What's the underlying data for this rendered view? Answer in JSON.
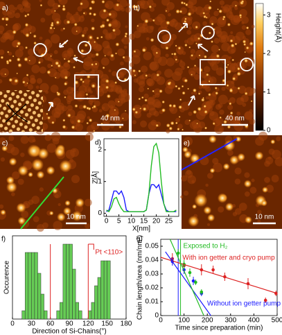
{
  "images": [
    {
      "label": "a)",
      "scale_bar": "40 nm"
    },
    {
      "label": "b)",
      "scale_bar": "40 nm"
    },
    {
      "label": "c)",
      "scale_bar": "10 nm"
    },
    {
      "label": "e)",
      "scale_bar": "10 nm"
    }
  ],
  "colorbar": {
    "label": "Height(Å)",
    "lim": [
      0,
      3.3
    ],
    "ticks": [
      0,
      1,
      2,
      3
    ]
  },
  "chart_data": [
    {
      "type": "line",
      "panel": "d)",
      "xlabel": "X[nm]",
      "ylabel": "Z[Å]",
      "x": [
        0,
        1,
        2,
        3,
        4,
        5,
        6,
        7,
        8,
        9,
        10,
        11,
        12,
        13,
        14,
        15,
        16,
        17,
        18,
        19,
        20,
        21,
        22,
        23,
        24,
        25,
        26,
        27,
        28
      ],
      "series": [
        {
          "color": "#1a1aff",
          "values": [
            0.05,
            0.1,
            0.4,
            0.7,
            0.7,
            0.6,
            0.7,
            0.5,
            0.1,
            0.05,
            0.05,
            0.05,
            0.05,
            0.05,
            0.05,
            0.05,
            0.1,
            0.6,
            0.9,
            0.9,
            0.8,
            0.9,
            0.6,
            0.3,
            0.1,
            0.05,
            0.05,
            0.05,
            0.05
          ]
        },
        {
          "color": "#22bb22",
          "values": [
            0.1,
            0.05,
            0.2,
            0.45,
            0.5,
            0.3,
            0.15,
            0.05,
            0.05,
            0.05,
            0.05,
            0.05,
            0.05,
            0.05,
            0.05,
            0.05,
            0.1,
            0.6,
            1.5,
            2.1,
            2.2,
            1.9,
            1.0,
            0.3,
            0.05,
            0.05,
            0.05,
            0.05,
            0.1
          ]
        }
      ],
      "xlim": [
        -1,
        29
      ],
      "xticks": [
        0,
        5,
        10,
        15,
        20,
        25
      ],
      "ylim": [
        -0.1,
        2.35
      ],
      "yticks": [
        0,
        1,
        2
      ]
    },
    {
      "type": "histogram",
      "panel": "f)",
      "xlabel": "Direction of Si-Chains(°)",
      "ylabel": "Occurence",
      "bins": [
        15,
        20,
        25,
        30,
        35,
        40,
        45,
        50,
        55,
        60,
        65,
        70,
        75,
        80,
        85,
        90,
        95,
        100,
        105,
        110,
        115,
        120,
        125,
        130,
        135,
        140,
        145,
        150,
        155
      ],
      "counts": [
        1,
        8,
        8,
        8,
        8,
        5.5,
        3,
        1,
        0,
        0,
        0,
        1,
        2,
        9,
        9,
        9,
        6,
        2,
        1,
        0,
        0,
        1,
        2,
        4,
        5,
        7,
        7,
        7
      ],
      "color": "#66cc55",
      "xlim": [
        0,
        180
      ],
      "xticks": [
        0,
        30,
        60,
        90,
        120,
        150,
        180
      ],
      "ylim": [
        0,
        10
      ],
      "reference_lines": [
        60,
        120
      ],
      "reference_color": "#dd2222",
      "reference_label": "Pt <110>"
    },
    {
      "type": "scatter",
      "panel": "g)",
      "xlabel": "Time since preparation (min)",
      "ylabel": "Chain length/area (nm/nm²)",
      "series": [
        {
          "name": "With ion getter and cryo pump",
          "color": "#dd2222",
          "x": [
            50,
            100,
            175,
            225,
            275,
            375,
            450,
            495
          ],
          "values": [
            0.041,
            0.036,
            0.033,
            0.033,
            0.028,
            0.023,
            0.011,
            0.016
          ],
          "errors": [
            0.004,
            0.003,
            0.004,
            0.003,
            0.003,
            0.004,
            0.002,
            0.002
          ]
        },
        {
          "name": "Without ion getter pump",
          "color": "#1a1aff",
          "x": [
            50,
            100,
            140,
            175
          ],
          "values": [
            0.039,
            0.033,
            0.025,
            0.016
          ],
          "errors": [
            0.003,
            0.003,
            0.003,
            0.002
          ]
        },
        {
          "name": "Exposed to H₂",
          "color": "#22bb22",
          "x": [
            75,
            100,
            125,
            150,
            175
          ],
          "values": [
            0.045,
            0.037,
            0.031,
            0.024,
            0.017
          ],
          "errors": [
            0.003,
            0.003,
            0.003,
            0.002,
            0.002
          ]
        },
        {
          "color": "#dd2222",
          "mode": "line",
          "x": [
            0,
            500
          ],
          "values": [
            0.042,
            0.016
          ]
        },
        {
          "color": "#1a1aff",
          "mode": "line",
          "x": [
            20,
            215
          ],
          "values": [
            0.046,
            0
          ]
        },
        {
          "color": "#22bb22",
          "mode": "line",
          "x": [
            40,
            185
          ],
          "values": [
            0.055,
            0
          ]
        }
      ],
      "vlines": [
        {
          "value": 75,
          "color": "#1a1aff"
        },
        {
          "value": 85,
          "color": "#22bb22"
        }
      ],
      "xlim": [
        0,
        500
      ],
      "xticks": [
        0,
        100,
        200,
        300,
        400,
        500
      ],
      "ylim": [
        0,
        0.055
      ],
      "yticks": [
        0,
        0.01,
        0.02,
        0.03,
        0.04,
        0.05
      ]
    }
  ]
}
